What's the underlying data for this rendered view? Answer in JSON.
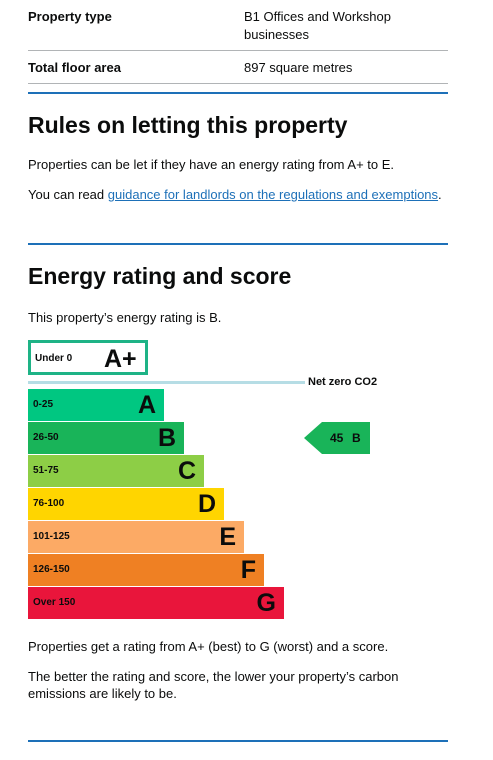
{
  "summary": {
    "rows": [
      {
        "key": "Property type",
        "value": "B1 Offices and Workshop businesses"
      },
      {
        "key": "Total floor area",
        "value": "897 square metres"
      }
    ]
  },
  "rules": {
    "heading": "Rules on letting this property",
    "para1": "Properties can be let if they have an energy rating from A+ to E.",
    "para2_prefix": "You can read ",
    "para2_link": "guidance for landlords on the regulations and exemptions",
    "para2_suffix": "."
  },
  "energy": {
    "heading": "Energy rating and score",
    "intro": "This property’s energy rating is B.",
    "chart": {
      "aplus": {
        "range": "Under 0",
        "letter": "A+",
        "color": "#1eb386"
      },
      "net_zero_label": "Net zero CO2",
      "bands": [
        {
          "range": "0-25",
          "letter": "A",
          "color": "#00c781"
        },
        {
          "range": "26-50",
          "letter": "B",
          "color": "#19b459"
        },
        {
          "range": "51-75",
          "letter": "C",
          "color": "#8dce46"
        },
        {
          "range": "76-100",
          "letter": "D",
          "color": "#ffd500"
        },
        {
          "range": "101-125",
          "letter": "E",
          "color": "#fcaa65"
        },
        {
          "range": "126-150",
          "letter": "F",
          "color": "#ef8023"
        },
        {
          "range": "Over 150",
          "letter": "G",
          "color": "#e9153b"
        }
      ],
      "current": {
        "score": "45",
        "rating": "B",
        "color": "#19b459"
      }
    },
    "note1": "Properties get a rating from A+ (best) to G (worst) and a score.",
    "note2": "The better the rating and score, the lower your property’s carbon emissions are likely to be."
  }
}
